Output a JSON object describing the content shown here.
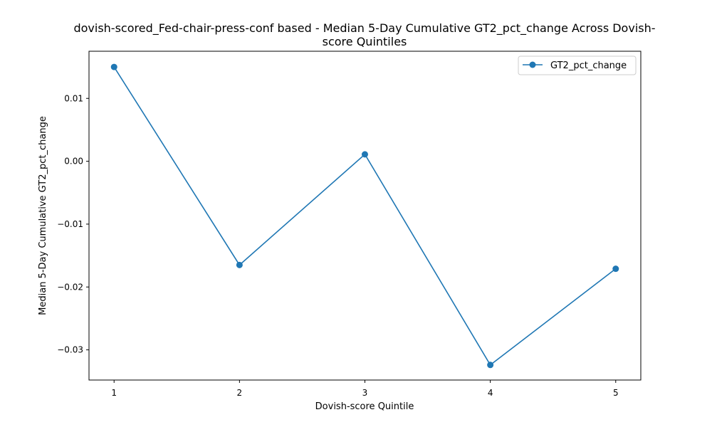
{
  "chart_data": {
    "type": "line",
    "title_lines": [
      "dovish-scored_Fed-chair-press-conf based - Median 5-Day Cumulative GT2_pct_change Across Dovish-",
      "score Quintiles"
    ],
    "xlabel": "Dovish-score Quintile",
    "ylabel": "Median 5-Day Cumulative GT2_pct_change",
    "x": [
      1,
      2,
      3,
      4,
      5
    ],
    "x_tick_labels": [
      "1",
      "2",
      "3",
      "4",
      "5"
    ],
    "xlim": [
      0.8,
      5.2
    ],
    "ylim": [
      -0.0348,
      0.0175
    ],
    "y_ticks": [
      0.01,
      0.0,
      -0.01,
      -0.02,
      -0.03
    ],
    "y_tick_labels": [
      "0.01",
      "0.00",
      "−0.01",
      "−0.02",
      "−0.03"
    ],
    "grid": false,
    "legend_position": "top-right",
    "series": [
      {
        "name": "GT2_pct_change",
        "color": "#1f77b4",
        "marker": "circle",
        "values": [
          0.015,
          -0.0165,
          0.0011,
          -0.0324,
          -0.0171
        ]
      }
    ]
  }
}
